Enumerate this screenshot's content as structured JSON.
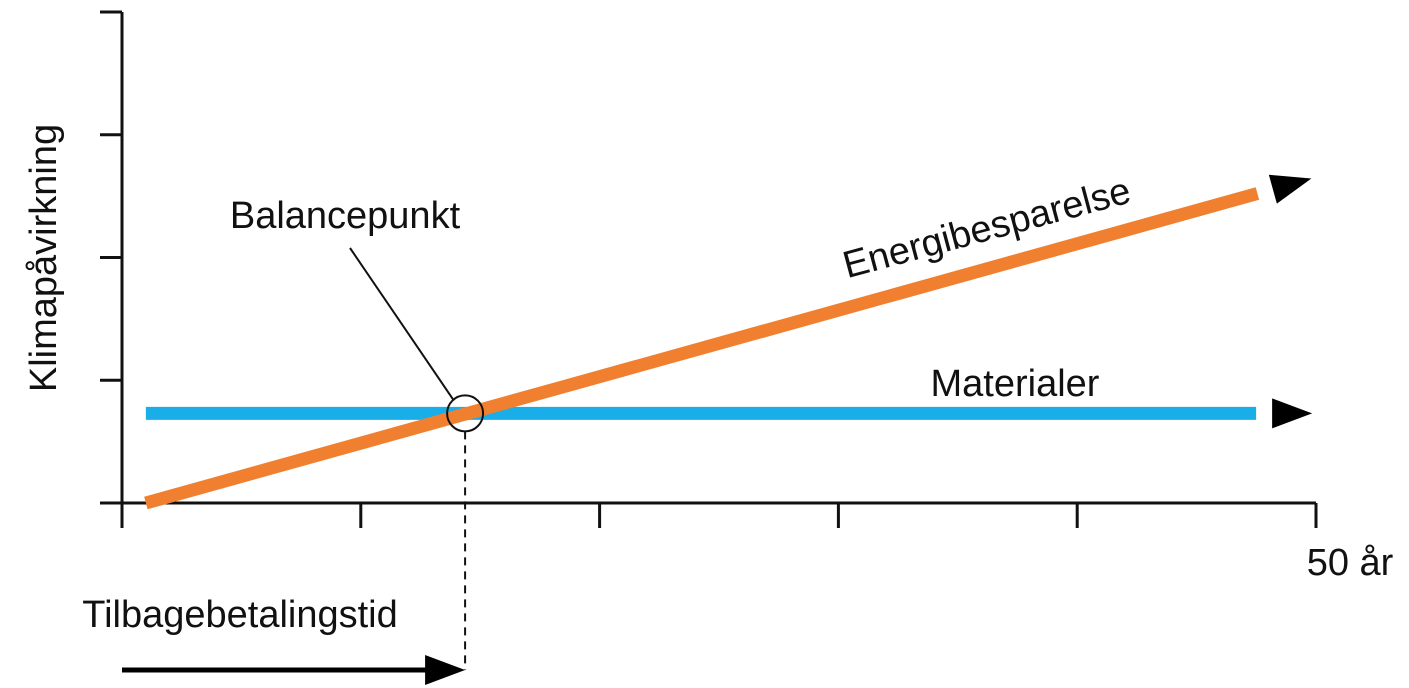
{
  "chart_data": {
    "type": "line",
    "xlabel": "",
    "ylabel": "Klimapåvirkning",
    "x_end_label": "50 år",
    "xlim": [
      0,
      50
    ],
    "ylim": [
      0,
      4
    ],
    "x_ticks": [
      0,
      10,
      20,
      30,
      40,
      50
    ],
    "y_ticks": [
      1,
      2,
      3,
      4
    ],
    "grid": false,
    "series": [
      {
        "name": "Energibesparelse",
        "color": "#f08030",
        "x": [
          1,
          49
        ],
        "y": [
          0,
          2.6
        ]
      },
      {
        "name": "Materialer",
        "color": "#1aaee8",
        "x": [
          1,
          49
        ],
        "y": [
          0.73,
          0.73
        ]
      }
    ],
    "annotations": {
      "balance_point": {
        "label": "Balancepunkt",
        "x": 14.2,
        "y": 0.73
      },
      "payback": {
        "label": "Tilbagebetalingstid",
        "x_from": 0,
        "x_to": 14.2
      }
    }
  }
}
